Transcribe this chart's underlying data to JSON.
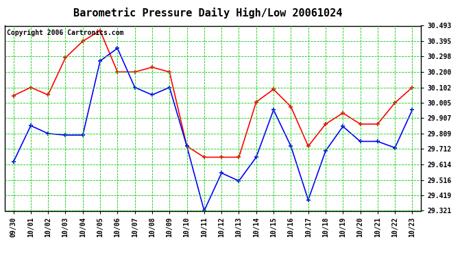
{
  "title": "Barometric Pressure Daily High/Low 20061024",
  "copyright": "Copyright 2006 Cartronics.com",
  "dates": [
    "09/30",
    "10/01",
    "10/02",
    "10/03",
    "10/04",
    "10/05",
    "10/06",
    "10/07",
    "10/08",
    "10/09",
    "10/10",
    "10/11",
    "10/12",
    "10/13",
    "10/14",
    "10/15",
    "10/16",
    "10/17",
    "10/18",
    "10/19",
    "10/20",
    "10/21",
    "10/22",
    "10/23"
  ],
  "high": [
    30.05,
    30.102,
    30.055,
    30.29,
    30.395,
    30.462,
    30.2,
    30.2,
    30.23,
    30.2,
    29.73,
    29.66,
    29.66,
    29.66,
    30.01,
    30.09,
    29.98,
    29.73,
    29.87,
    29.94,
    29.87,
    29.87,
    30.005,
    30.102
  ],
  "low": [
    29.63,
    29.86,
    29.81,
    29.8,
    29.8,
    30.27,
    30.35,
    30.102,
    30.055,
    30.102,
    29.73,
    29.321,
    29.56,
    29.51,
    29.66,
    29.96,
    29.73,
    29.39,
    29.7,
    29.855,
    29.76,
    29.76,
    29.72,
    29.96
  ],
  "ylim_min": 29.321,
  "ylim_max": 30.493,
  "yticks": [
    29.321,
    29.419,
    29.516,
    29.614,
    29.712,
    29.809,
    29.907,
    30.005,
    30.102,
    30.2,
    30.298,
    30.395,
    30.493
  ],
  "high_color": "#ff0000",
  "low_color": "#0000ff",
  "grid_color": "#00cc00",
  "bg_color": "#ffffff",
  "border_color": "#000000",
  "title_fontsize": 11,
  "copyright_fontsize": 7,
  "tick_fontsize": 7
}
